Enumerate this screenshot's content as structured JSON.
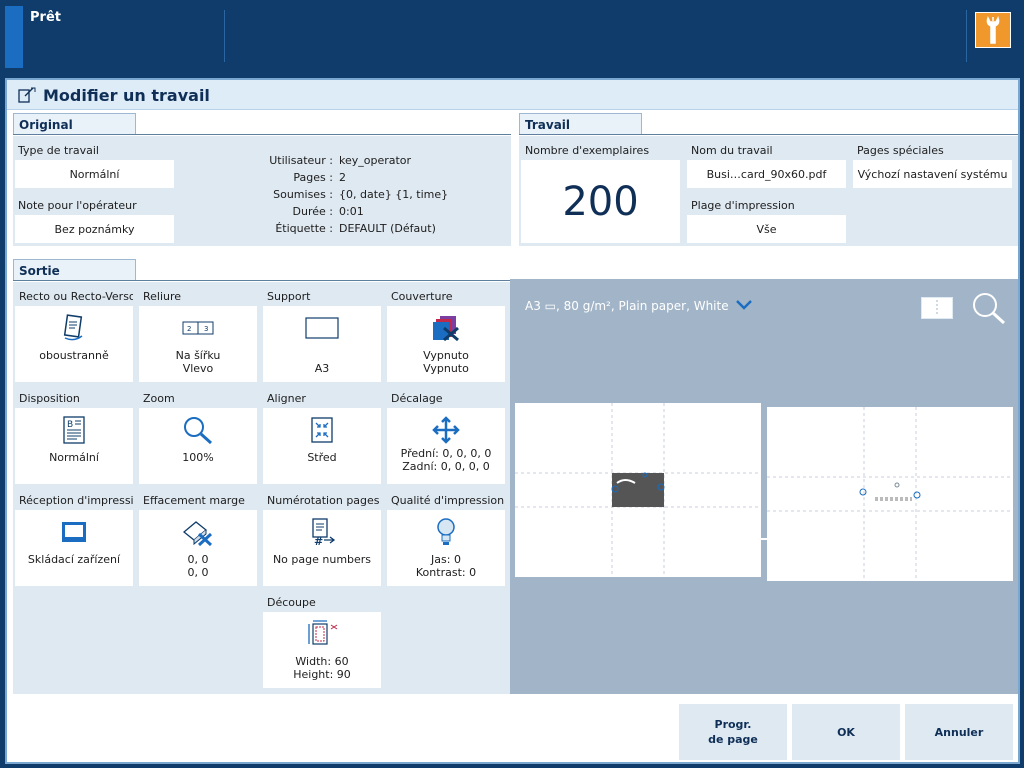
{
  "topbar": {
    "status": "Prêt"
  },
  "dialog": {
    "title": "Modifier un travail"
  },
  "original": {
    "tab": "Original",
    "job_type": {
      "label": "Type de travail",
      "value": "Normální"
    },
    "operator_note": {
      "label": "Note pour l'opérateur",
      "value": "Bez poznámky"
    },
    "info": [
      {
        "key": "Utilisateur :",
        "value": "key_operator"
      },
      {
        "key": "Pages :",
        "value": "2"
      },
      {
        "key": "Soumises :",
        "value": "{0, date} {1, time}"
      },
      {
        "key": "Durée :",
        "value": "0:01"
      },
      {
        "key": "Étiquette :",
        "value": "DEFAULT (Défaut)"
      }
    ]
  },
  "travail": {
    "tab": "Travail",
    "copies": {
      "label": "Nombre d'exemplaires",
      "value": "200"
    },
    "job_name": {
      "label": "Nom du travail",
      "value": "Busi…card_90x60.pdf"
    },
    "print_range": {
      "label": "Plage d'impression",
      "value": "Vše"
    },
    "special_pages": {
      "label": "Pages spéciales",
      "value": "Výchozí nastavení systému"
    }
  },
  "sortie": {
    "tab": "Sortie",
    "tiles": [
      {
        "label": "Recto ou Recto-Verso",
        "icon": "duplex-icon",
        "value": "oboustranně",
        "value2": ""
      },
      {
        "label": "Reliure",
        "icon": "binding-icon",
        "value": "Na šířku",
        "value2": "Vlevo"
      },
      {
        "label": "Support",
        "icon": "media-icon",
        "value": "",
        "value2": "A3"
      },
      {
        "label": "Couverture",
        "icon": "cover-icon",
        "value": "Vypnuto",
        "value2": "Vypnuto"
      },
      {
        "label": "Disposition",
        "icon": "layout-icon",
        "value": "Normální",
        "value2": ""
      },
      {
        "label": "Zoom",
        "icon": "zoom-icon",
        "value": "100%",
        "value2": ""
      },
      {
        "label": "Aligner",
        "icon": "align-icon",
        "value": "Střed",
        "value2": ""
      },
      {
        "label": "Décalage",
        "icon": "shift-icon",
        "value": "Přední: 0, 0, 0, 0",
        "value2": "Zadní: 0, 0, 0, 0"
      },
      {
        "label": "Réception d'impression",
        "icon": "output-tray-icon",
        "value": "Skládací zařízení",
        "value2": ""
      },
      {
        "label": "Effacement marge",
        "icon": "erase-margin-icon",
        "value": "0, 0",
        "value2": "0, 0"
      },
      {
        "label": "Numérotation pages",
        "icon": "page-numbering-icon",
        "value": "No page numbers",
        "value2": ""
      },
      {
        "label": "Qualité d'impression",
        "icon": "print-quality-icon",
        "value": "Jas: 0",
        "value2": "Kontrast: 0"
      },
      {
        "label": "Découpe",
        "icon": "trim-icon",
        "value": "Width: 60",
        "value2": "Height: 90"
      }
    ]
  },
  "preview": {
    "spec": "A3 ▭, 80 g/m², Plain paper, White"
  },
  "footer": {
    "page_program": "Progr.\nde page",
    "page_program_l1": "Progr.",
    "page_program_l2": "de page",
    "ok": "OK",
    "cancel": "Annuler"
  },
  "colors": {
    "accent": "#f0982b",
    "navy": "#0f3c6a",
    "panel": "#dfe9f2",
    "preview_bg": "#a2b5c8"
  }
}
